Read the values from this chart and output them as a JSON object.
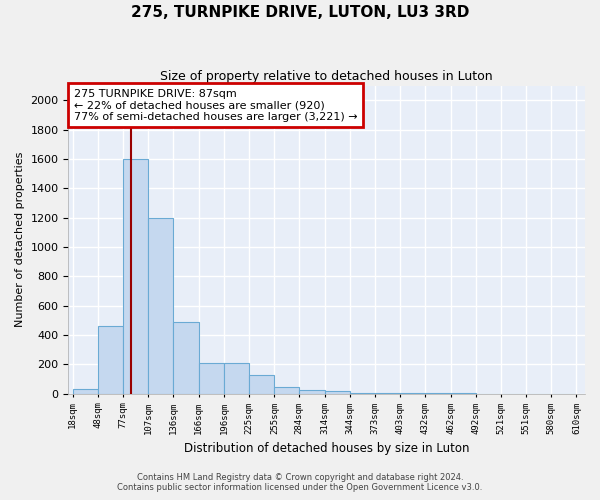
{
  "title": "275, TURNPIKE DRIVE, LUTON, LU3 3RD",
  "subtitle": "Size of property relative to detached houses in Luton",
  "xlabel": "Distribution of detached houses by size in Luton",
  "ylabel": "Number of detached properties",
  "bin_edges": [
    18,
    48,
    77,
    107,
    136,
    166,
    196,
    225,
    255,
    284,
    314,
    344,
    373,
    403,
    432,
    462,
    492,
    521,
    551,
    580,
    610
  ],
  "bar_heights": [
    30,
    460,
    1600,
    1200,
    490,
    210,
    210,
    130,
    45,
    25,
    20,
    5,
    3,
    3,
    2,
    2,
    1,
    1,
    1,
    1
  ],
  "bar_color": "#c5d8ef",
  "bar_edge_color": "#6aaad4",
  "bg_color": "#e8eef8",
  "grid_color": "#ffffff",
  "property_line_x": 87,
  "property_line_color": "#990000",
  "annotation_text": "275 TURNPIKE DRIVE: 87sqm\n← 22% of detached houses are smaller (920)\n77% of semi-detached houses are larger (3,221) →",
  "annotation_box_color": "#ffffff",
  "annotation_box_edge": "#cc0000",
  "ylim": [
    0,
    2100
  ],
  "yticks": [
    0,
    200,
    400,
    600,
    800,
    1000,
    1200,
    1400,
    1600,
    1800,
    2000
  ],
  "footer1": "Contains HM Land Registry data © Crown copyright and database right 2024.",
  "footer2": "Contains public sector information licensed under the Open Government Licence v3.0."
}
